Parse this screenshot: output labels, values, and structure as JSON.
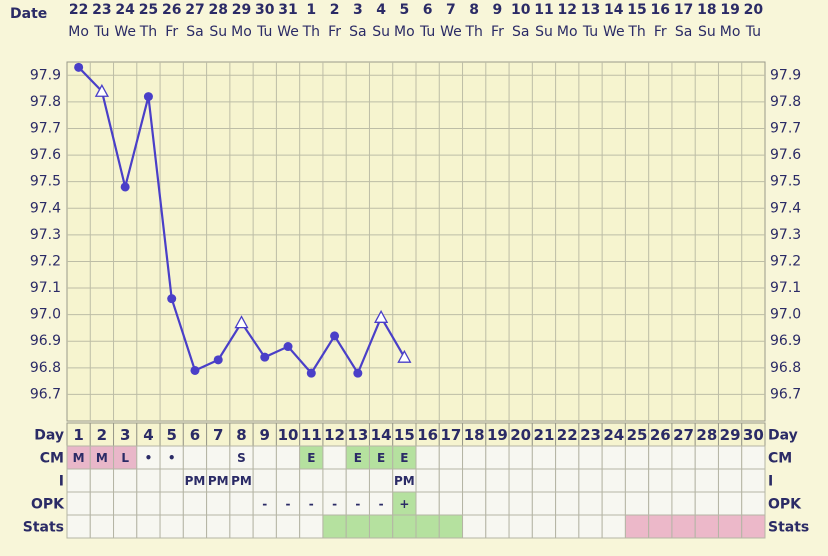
{
  "chart_data": {
    "type": "line",
    "date_label": "Date",
    "dates": [
      22,
      23,
      24,
      25,
      26,
      27,
      28,
      29,
      30,
      31,
      1,
      2,
      3,
      4,
      5,
      6,
      7,
      8,
      9,
      10,
      11,
      12,
      13,
      14,
      15,
      16,
      17,
      18,
      19,
      20
    ],
    "weekdays": [
      "Mo",
      "Tu",
      "We",
      "Th",
      "Fr",
      "Sa",
      "Su",
      "Mo",
      "Tu",
      "We",
      "Th",
      "Fr",
      "Sa",
      "Su",
      "Mo",
      "Tu",
      "We",
      "Th",
      "Fr",
      "Sa",
      "Su",
      "Mo",
      "Tu",
      "We",
      "Th",
      "Fr",
      "Sa",
      "Su",
      "Mo",
      "Tu"
    ],
    "row_labels": {
      "day": "Day",
      "cm": "CM",
      "i": "I",
      "opk": "OPK",
      "stats": "Stats"
    },
    "categories": [
      1,
      2,
      3,
      4,
      5,
      6,
      7,
      8,
      9,
      10,
      11,
      12,
      13,
      14,
      15,
      16,
      17,
      18,
      19,
      20,
      21,
      22,
      23,
      24,
      25,
      26,
      27,
      28,
      29,
      30
    ],
    "series": [
      {
        "color": "#4a3fc8",
        "values": [
          97.93,
          97.84,
          97.48,
          97.82,
          97.06,
          96.79,
          96.83,
          96.97,
          96.84,
          96.88,
          96.78,
          96.92,
          96.78,
          96.99,
          96.84,
          null,
          null,
          null,
          null,
          null,
          null,
          null,
          null,
          null,
          null,
          null,
          null,
          null,
          null,
          null
        ],
        "markers": [
          "dot",
          "triangle",
          "dot",
          "dot",
          "dot",
          "dot",
          "dot",
          "triangle",
          "dot",
          "dot",
          "dot",
          "dot",
          "dot",
          "triangle",
          "triangle",
          null,
          null,
          null,
          null,
          null,
          null,
          null,
          null,
          null,
          null,
          null,
          null,
          null,
          null,
          null
        ]
      }
    ],
    "ylim": [
      96.6,
      97.95
    ],
    "yticks": [
      96.7,
      96.8,
      96.9,
      {
        "value": 97,
        "label": "97.0"
      },
      97.1,
      97.2,
      97.3,
      97.4,
      97.5,
      97.6,
      97.7,
      97.8,
      97.9
    ],
    "grid": true,
    "cm": [
      {
        "text": "M",
        "color": "#e9b7c9"
      },
      {
        "text": "M",
        "color": "#e9b7c9"
      },
      {
        "text": "L",
        "color": "#e9b7c9"
      },
      {
        "text": "•",
        "color": null
      },
      {
        "text": "•",
        "color": null
      },
      null,
      null,
      {
        "text": "S",
        "color": null
      },
      null,
      null,
      {
        "text": "E",
        "color": "#b5e19f"
      },
      null,
      {
        "text": "E",
        "color": "#b5e19f"
      },
      {
        "text": "E",
        "color": "#b5e19f"
      },
      {
        "text": "E",
        "color": "#b5e19f"
      },
      null,
      null,
      null,
      null,
      null,
      null,
      null,
      null,
      null,
      null,
      null,
      null,
      null,
      null,
      null
    ],
    "i": [
      null,
      null,
      null,
      null,
      null,
      {
        "text": "PM",
        "color": null
      },
      {
        "text": "PM",
        "color": null
      },
      {
        "text": "PM",
        "color": null
      },
      null,
      null,
      null,
      null,
      null,
      null,
      {
        "text": "PM",
        "color": null
      },
      null,
      null,
      null,
      null,
      null,
      null,
      null,
      null,
      null,
      null,
      null,
      null,
      null,
      null,
      null
    ],
    "opk": [
      null,
      null,
      null,
      null,
      null,
      null,
      null,
      null,
      {
        "text": "-",
        "color": null
      },
      {
        "text": "-",
        "color": null
      },
      {
        "text": "-",
        "color": null
      },
      {
        "text": "-",
        "color": null
      },
      {
        "text": "-",
        "color": null
      },
      {
        "text": "-",
        "color": null
      },
      {
        "text": "+",
        "color": "#b5e19f"
      },
      null,
      null,
      null,
      null,
      null,
      null,
      null,
      null,
      null,
      null,
      null,
      null,
      null,
      null,
      null
    ],
    "stats": [
      null,
      null,
      null,
      null,
      null,
      null,
      null,
      null,
      null,
      null,
      null,
      "#b5e19f",
      "#b5e19f",
      "#b5e19f",
      "#b5e19f",
      "#b5e19f",
      "#b5e19f",
      null,
      null,
      null,
      null,
      null,
      null,
      null,
      "#ecb8c9",
      "#ecb8c9",
      "#ecb8c9",
      "#ecb8c9",
      "#ecb8c9",
      "#ecb8c9"
    ]
  }
}
